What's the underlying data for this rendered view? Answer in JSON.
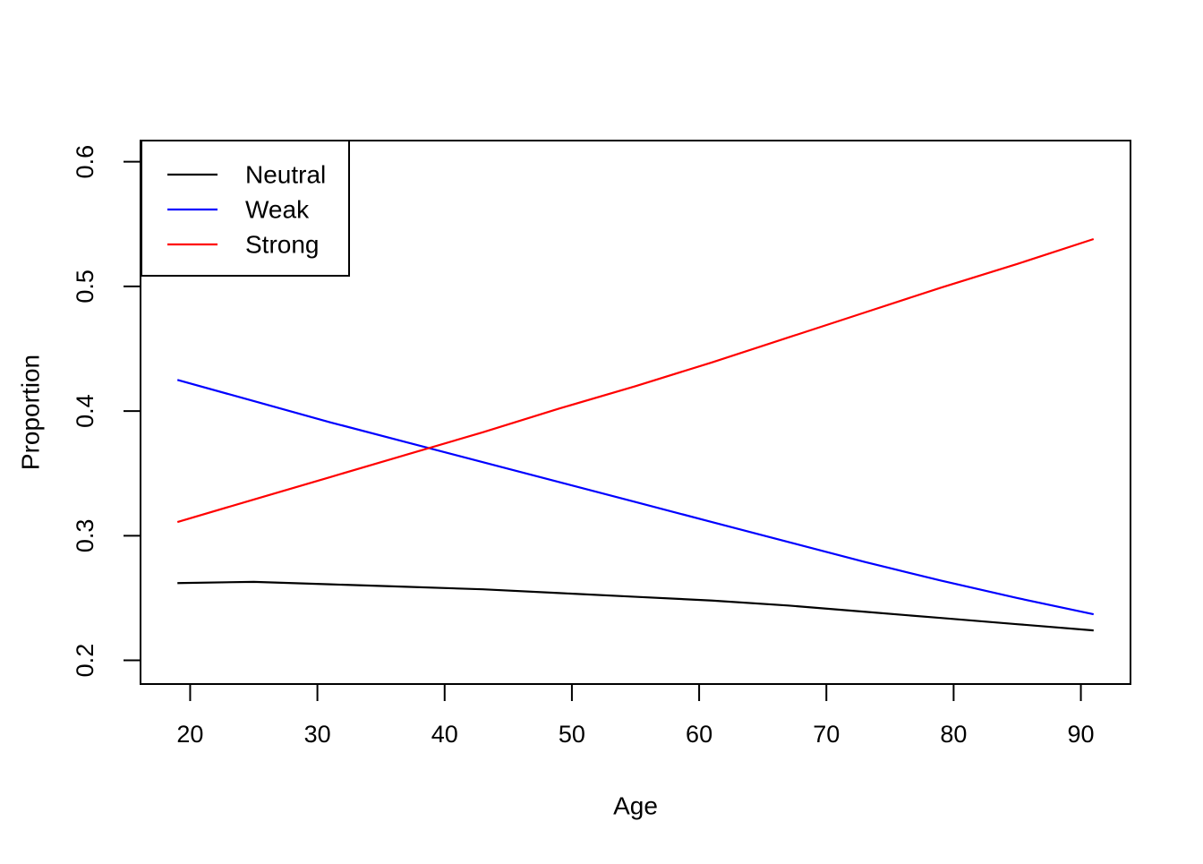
{
  "page": {
    "background": "#ffffff"
  },
  "chart_data": {
    "type": "line",
    "title": "",
    "xlabel": "Age",
    "ylabel": "Proportion",
    "x_ticks": [
      20,
      30,
      40,
      50,
      60,
      70,
      80,
      90
    ],
    "y_ticks": [
      "0.2",
      "0.3",
      "0.4",
      "0.5",
      "0.6"
    ],
    "y_tick_values": [
      0.2,
      0.3,
      0.4,
      0.5,
      0.6
    ],
    "x_range": [
      16.1,
      93.9
    ],
    "y_range": [
      0.181,
      0.617
    ],
    "grid": false,
    "legend_position": "top-left",
    "axis_color": "#000000",
    "x": [
      19,
      25,
      31,
      37,
      43,
      49,
      55,
      61,
      67,
      73,
      79,
      85,
      91
    ],
    "series": [
      {
        "name": "Neutral",
        "color": "#000000",
        "values": [
          0.262,
          0.263,
          0.261,
          0.259,
          0.257,
          0.254,
          0.251,
          0.248,
          0.244,
          0.239,
          0.234,
          0.229,
          0.224
        ]
      },
      {
        "name": "Weak",
        "color": "#0000ff",
        "values": [
          0.425,
          0.408,
          0.391,
          0.375,
          0.359,
          0.343,
          0.327,
          0.311,
          0.295,
          0.279,
          0.264,
          0.25,
          0.237
        ]
      },
      {
        "name": "Strong",
        "color": "#ff0000",
        "values": [
          0.311,
          0.329,
          0.347,
          0.365,
          0.383,
          0.402,
          0.42,
          0.439,
          0.459,
          0.479,
          0.499,
          0.518,
          0.538
        ]
      }
    ],
    "legend": [
      "Neutral",
      "Weak",
      "Strong"
    ]
  }
}
